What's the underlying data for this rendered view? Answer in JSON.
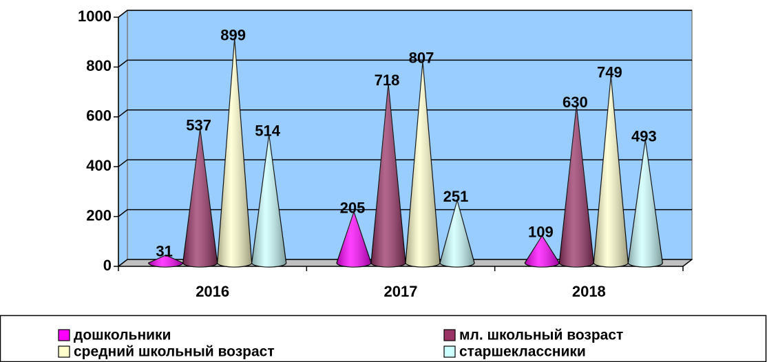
{
  "chart_data": {
    "type": "cone",
    "categories": [
      "2016",
      "2017",
      "2018"
    ],
    "series": [
      {
        "name": "дошкольники",
        "color": "#ff00ff",
        "values": [
          31,
          205,
          109
        ]
      },
      {
        "name": "мл. школьный возраст",
        "color": "#993366",
        "values": [
          537,
          718,
          630
        ]
      },
      {
        "name": "средний школьный возраст",
        "color": "#ffffcc",
        "values": [
          899,
          807,
          749
        ]
      },
      {
        "name": "старшеклассники",
        "color": "#ccffff",
        "values": [
          514,
          251,
          493
        ]
      }
    ],
    "ylim": [
      0,
      1000
    ],
    "yticks": [
      0,
      200,
      400,
      600,
      800,
      1000
    ],
    "grid": true,
    "wall_color": "#99ccff",
    "legend": "bottom"
  }
}
